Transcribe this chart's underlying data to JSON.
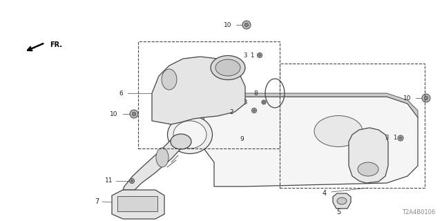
{
  "bg_color": "#ffffff",
  "line_color": "#444444",
  "text_color": "#222222",
  "diagram_code": "T2A4B0106",
  "label_fontsize": 7.0,
  "small_label_fontsize": 6.0
}
